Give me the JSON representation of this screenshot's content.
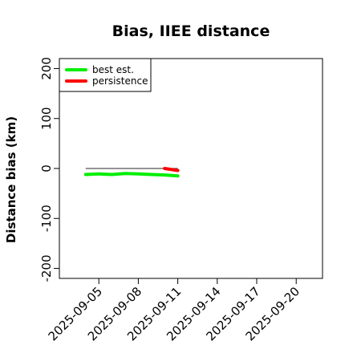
{
  "chart_data": {
    "type": "line",
    "title": "Bias, IIEE distance",
    "xlabel": "",
    "ylabel": "Distance bias (km)",
    "x_ticks": [
      "2025-09-05",
      "2025-09-08",
      "2025-09-11",
      "2025-09-14",
      "2025-09-17",
      "2025-09-20"
    ],
    "y_ticks": [
      -200,
      -100,
      0,
      100,
      200
    ],
    "y_tick_labels": [
      "-200",
      "-100",
      "0",
      "100",
      "200"
    ],
    "xlim": [
      "2025-09-02",
      "2025-09-22"
    ],
    "ylim": [
      -220,
      220
    ],
    "grid": false,
    "legend_position": "top-left",
    "reference_line": {
      "y": 0,
      "x_start": "2025-09-04",
      "x_end": "2025-09-11",
      "color": "#555555"
    },
    "series": [
      {
        "name": "best est.",
        "color": "#00ee00",
        "points": [
          {
            "x": "2025-09-04",
            "y": -12
          },
          {
            "x": "2025-09-05",
            "y": -11
          },
          {
            "x": "2025-09-06",
            "y": -12
          },
          {
            "x": "2025-09-07",
            "y": -10
          },
          {
            "x": "2025-09-08",
            "y": -11
          },
          {
            "x": "2025-09-09",
            "y": -12
          },
          {
            "x": "2025-09-10",
            "y": -13
          },
          {
            "x": "2025-09-11",
            "y": -15
          }
        ]
      },
      {
        "name": "persistence",
        "color": "#ff0000",
        "points": [
          {
            "x": "2025-09-10",
            "y": 0
          },
          {
            "x": "2025-09-11",
            "y": -4
          }
        ]
      }
    ]
  }
}
